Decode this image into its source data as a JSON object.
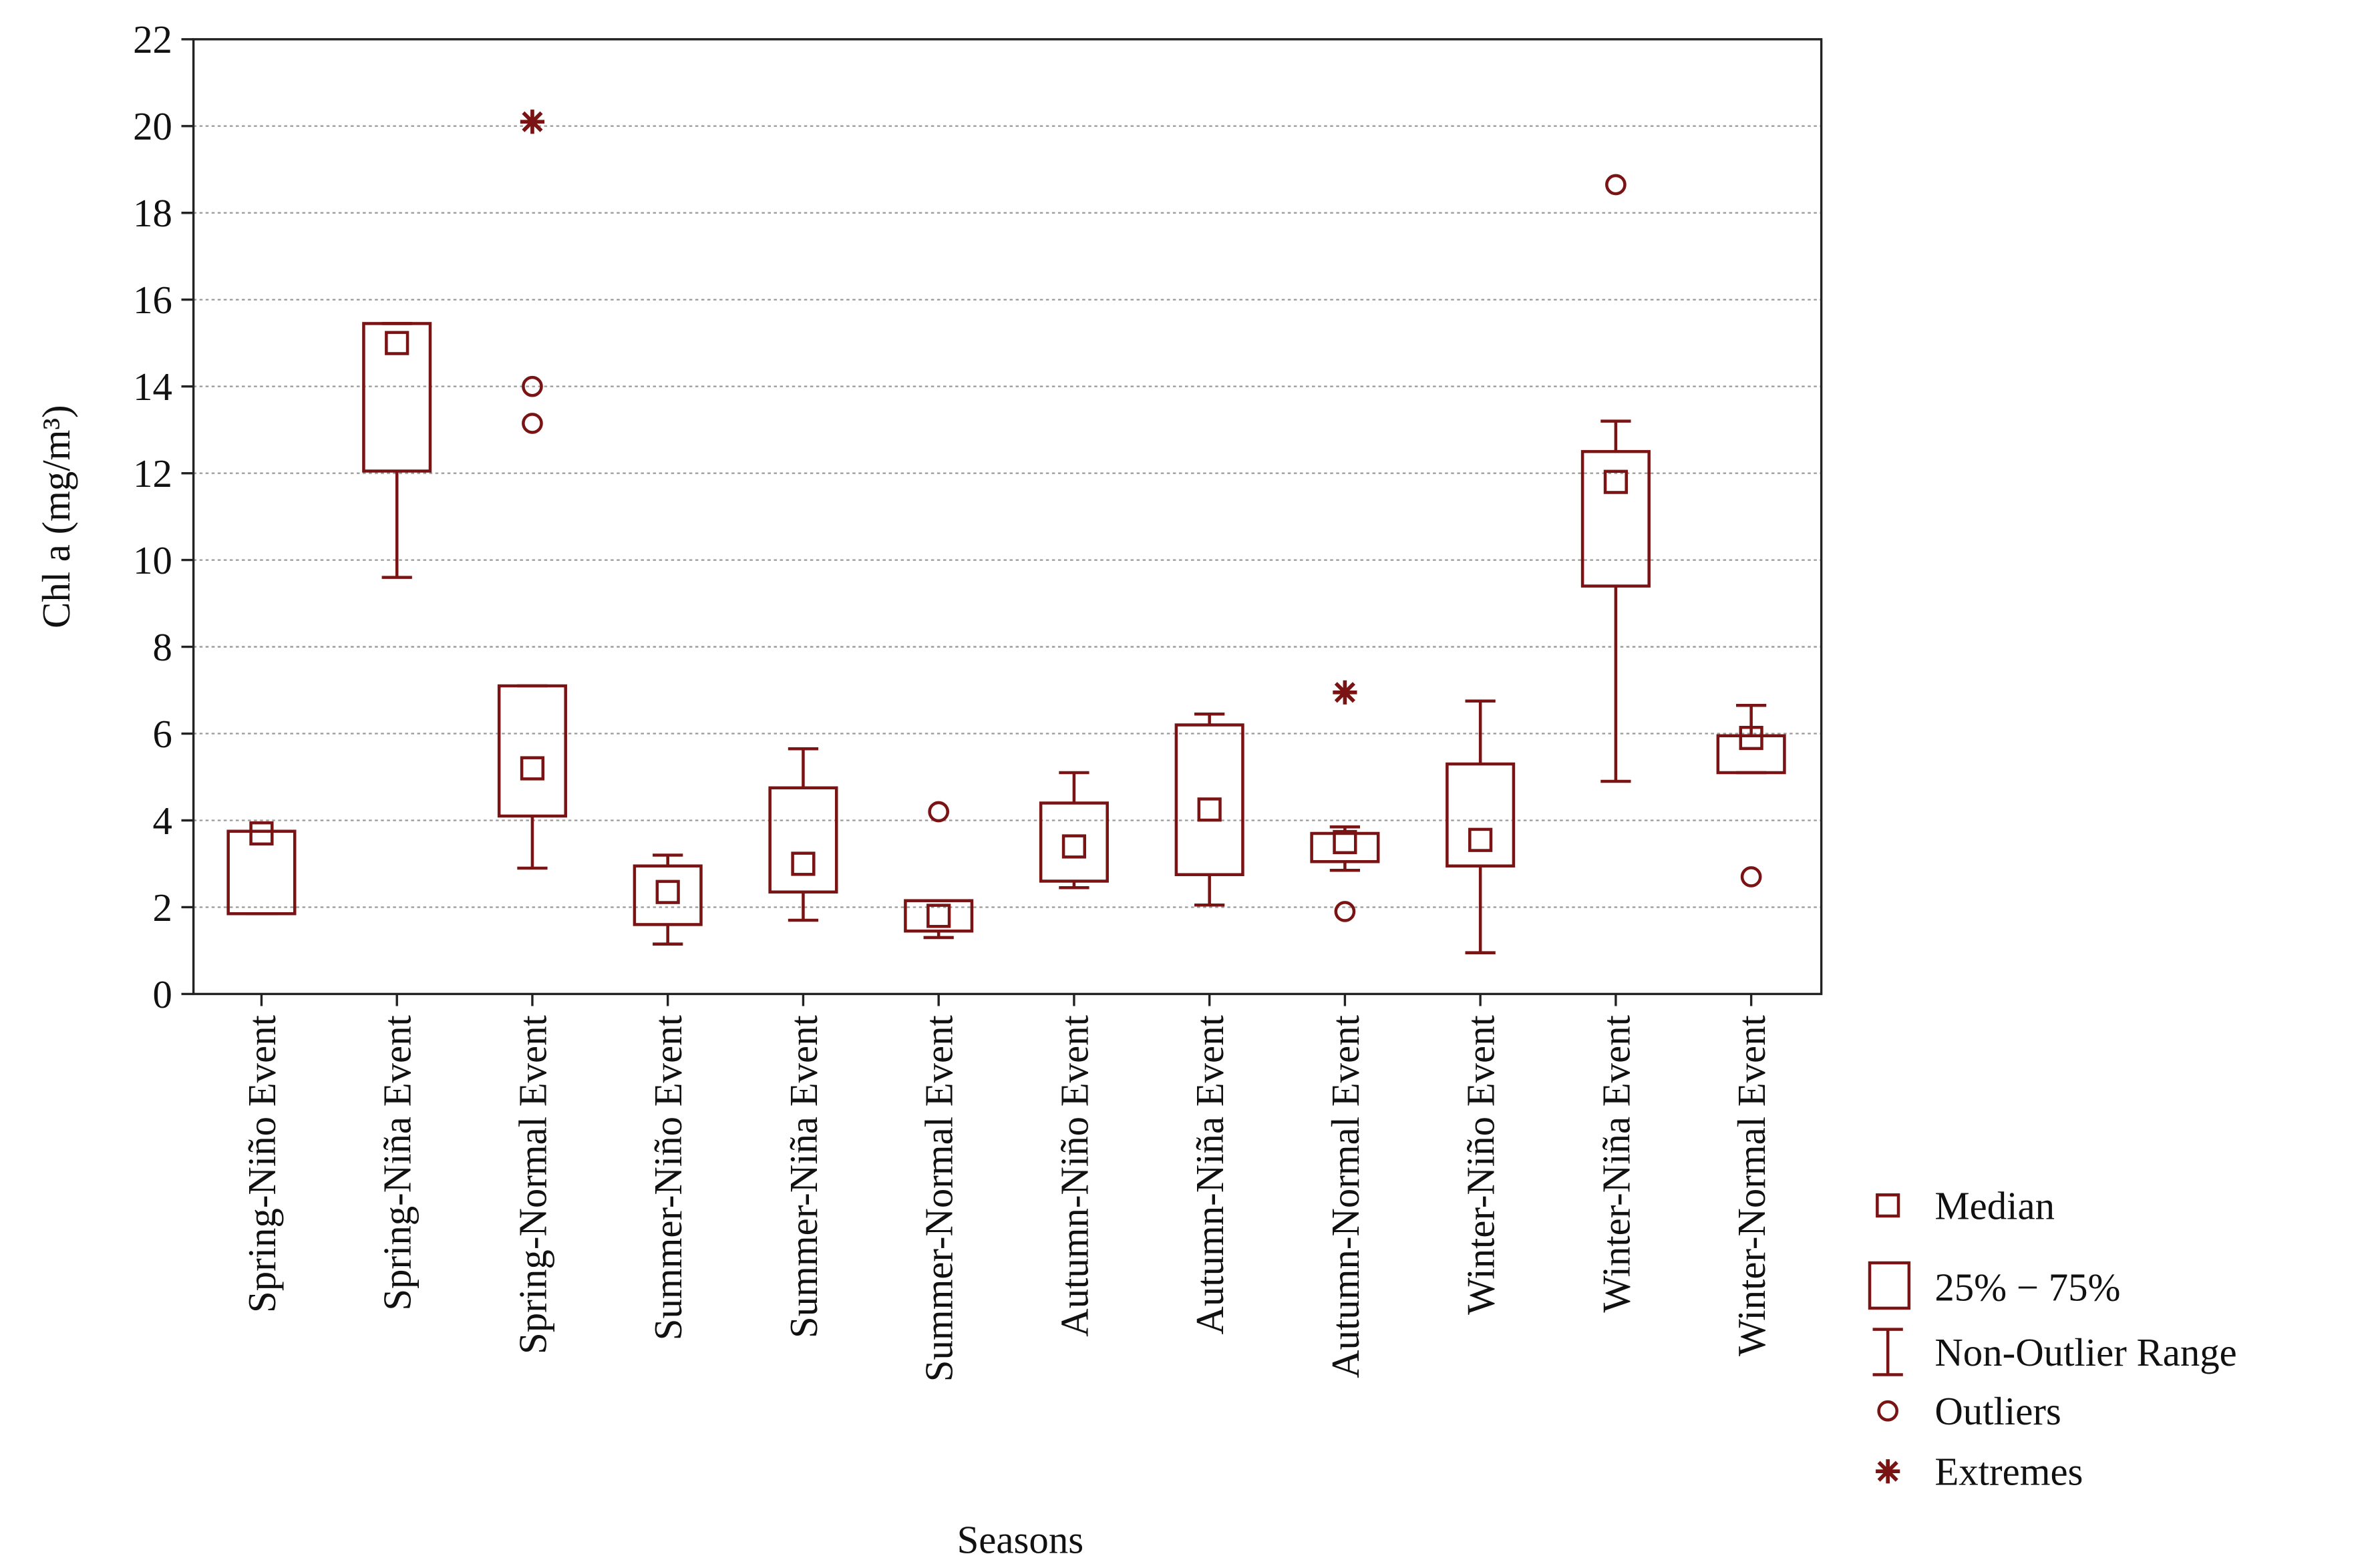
{
  "chart_data": {
    "type": "box",
    "x_label": "Seasons",
    "y_label": "Chl a (mg/m³)",
    "color": "#7a1414",
    "grid": true,
    "ylim": [
      0,
      22
    ],
    "yticks": [
      0,
      2,
      4,
      6,
      8,
      10,
      12,
      14,
      16,
      18,
      20,
      22
    ],
    "categories": [
      "Spring-Niño Event",
      "Spring-Niña Event",
      "Spring-Normal Event",
      "Summer-Niño Event",
      "Summer-Niña Event",
      "Summer-Normal Event",
      "Autumn-Niño Event",
      "Autumn-Niña Event",
      "Autumn-Normal Event",
      "Winter-Niño Event",
      "Winter-Niña Event",
      "Winter-Normal Event"
    ],
    "whisker_low": [
      1.85,
      9.6,
      2.9,
      1.15,
      1.7,
      1.3,
      2.45,
      2.05,
      2.85,
      0.95,
      4.9,
      5.1
    ],
    "q1": [
      1.85,
      12.05,
      4.1,
      1.6,
      2.35,
      1.45,
      2.6,
      2.75,
      3.05,
      2.95,
      9.4,
      5.1
    ],
    "median": [
      3.7,
      15.0,
      5.2,
      2.35,
      3.0,
      1.8,
      3.4,
      4.25,
      3.5,
      3.55,
      11.8,
      5.9
    ],
    "q3": [
      3.75,
      15.45,
      7.1,
      2.95,
      4.75,
      2.15,
      4.4,
      6.2,
      3.7,
      5.3,
      12.5,
      5.95
    ],
    "whisker_high": [
      3.75,
      15.45,
      7.1,
      3.2,
      5.65,
      2.15,
      5.1,
      6.45,
      3.85,
      6.75,
      13.2,
      6.65
    ],
    "outliers": [
      [],
      [],
      [
        14.0,
        13.15
      ],
      [],
      [],
      [
        4.2
      ],
      [],
      [],
      [
        1.9
      ],
      [],
      [
        18.65
      ],
      [
        2.7
      ]
    ],
    "extremes": [
      [],
      [],
      [
        20.1
      ],
      [],
      [],
      [],
      [],
      [],
      [
        6.95
      ],
      [],
      [],
      []
    ],
    "legend_labels": {
      "median": "Median",
      "box": "25% − 75%",
      "whisker": "Non-Outlier Range",
      "outliers": "Outliers",
      "extremes": "Extremes"
    }
  }
}
